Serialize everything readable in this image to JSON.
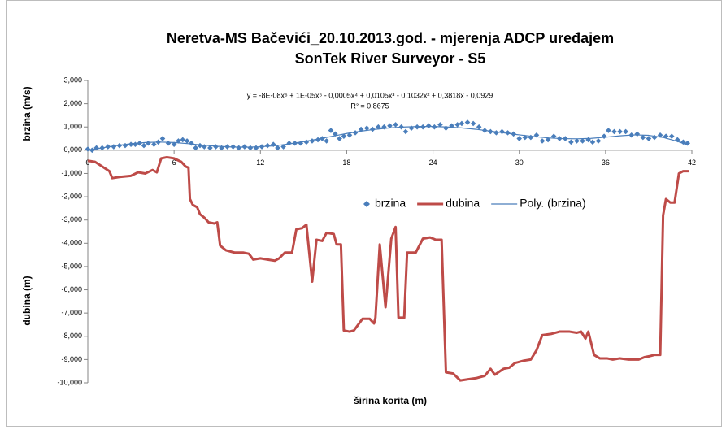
{
  "chart_data": {
    "type": "line",
    "title": [
      "Neretva-MS Bačevići_20.10.2013.god. - mjerenja ADCP uređajem",
      "SonTek River Surveyor - S5"
    ],
    "x_label": "širina korita (m)",
    "y_labels": [
      "brzina (m/s)",
      "dubina (m)"
    ],
    "annotations": [
      "y = -8E-08x⁶ + 1E-05x⁵ - 0,0005x⁴ + 0,0105x³ - 0,1032x² + 0,3818x - 0,0929",
      "R² = 0,8675"
    ],
    "xlim": [
      0,
      42
    ],
    "xticks": [
      0,
      6,
      12,
      18,
      24,
      30,
      36,
      42
    ],
    "ylim": [
      -10,
      3
    ],
    "yticks": [
      {
        "value": 3,
        "label": "3,000"
      },
      {
        "value": 2,
        "label": "2,000"
      },
      {
        "value": 1,
        "label": "1,000"
      },
      {
        "value": 0,
        "label": "0,000"
      },
      {
        "value": -1,
        "label": "-1,000"
      },
      {
        "value": -2,
        "label": "-2,000"
      },
      {
        "value": -3,
        "label": "-3,000"
      },
      {
        "value": -4,
        "label": "-4,000"
      },
      {
        "value": -5,
        "label": "-5,000"
      },
      {
        "value": -6,
        "label": "-6,000"
      },
      {
        "value": -7,
        "label": "-7,000"
      },
      {
        "value": -8,
        "label": "-8,000"
      },
      {
        "value": -9,
        "label": "-9,000"
      },
      {
        "value": -10,
        "label": "-10,000"
      }
    ],
    "grid": false,
    "series": [
      {
        "name": "brzina",
        "type": "scatter",
        "color": "#4a7ebb",
        "x": [
          0,
          0.3,
          0.6,
          1,
          1.4,
          1.8,
          2.2,
          2.6,
          3,
          3.3,
          3.6,
          3.9,
          4.2,
          4.6,
          4.9,
          5.2,
          5.6,
          6,
          6.3,
          6.6,
          6.9,
          7.2,
          7.5,
          7.8,
          8.1,
          8.5,
          8.9,
          9.3,
          9.7,
          10.1,
          10.5,
          10.9,
          11.3,
          11.7,
          12.1,
          12.5,
          12.9,
          13.2,
          13.6,
          14,
          14.4,
          14.8,
          15.2,
          15.6,
          16,
          16.3,
          16.6,
          16.9,
          17.2,
          17.5,
          17.8,
          18.2,
          18.6,
          19,
          19.4,
          19.8,
          20.2,
          20.6,
          21,
          21.4,
          21.8,
          22.1,
          22.5,
          22.9,
          23.3,
          23.7,
          24.1,
          24.5,
          24.9,
          25.3,
          25.7,
          26,
          26.4,
          26.8,
          27.2,
          27.6,
          28,
          28.4,
          28.8,
          29.2,
          29.6,
          30,
          30.4,
          30.8,
          31.2,
          31.6,
          32,
          32.4,
          32.8,
          33.2,
          33.6,
          34,
          34.4,
          34.8,
          35.1,
          35.5,
          35.9,
          36.2,
          36.6,
          37,
          37.4,
          37.8,
          38.2,
          38.6,
          39,
          39.4,
          39.8,
          40.2,
          40.6,
          41,
          41.4,
          41.7
        ],
        "values": [
          0.05,
          0,
          0.1,
          0.1,
          0.15,
          0.15,
          0.2,
          0.2,
          0.25,
          0.25,
          0.3,
          0.2,
          0.3,
          0.25,
          0.35,
          0.5,
          0.3,
          0.25,
          0.4,
          0.45,
          0.4,
          0.3,
          0.1,
          0.2,
          0.15,
          0.1,
          0.15,
          0.1,
          0.15,
          0.15,
          0.1,
          0.15,
          0.1,
          0.1,
          0.15,
          0.2,
          0.25,
          0.1,
          0.15,
          0.3,
          0.3,
          0.3,
          0.35,
          0.4,
          0.45,
          0.5,
          0.4,
          0.85,
          0.7,
          0.5,
          0.6,
          0.65,
          0.75,
          0.9,
          0.95,
          0.9,
          1,
          1,
          1.05,
          1.1,
          1,
          0.8,
          0.95,
          1,
          1,
          1.05,
          1,
          1.1,
          0.95,
          1.05,
          1.1,
          1.15,
          1.2,
          1.15,
          1,
          0.85,
          0.8,
          0.75,
          0.8,
          0.75,
          0.7,
          0.5,
          0.55,
          0.55,
          0.65,
          0.4,
          0.45,
          0.6,
          0.5,
          0.5,
          0.35,
          0.4,
          0.4,
          0.45,
          0.35,
          0.4,
          0.6,
          0.85,
          0.8,
          0.8,
          0.8,
          0.65,
          0.7,
          0.55,
          0.5,
          0.55,
          0.65,
          0.6,
          0.6,
          0.45,
          0.35,
          0.3
        ]
      },
      {
        "name": "dubina",
        "type": "line",
        "color": "#be4b48",
        "x": [
          0,
          0.5,
          1,
          1.5,
          1.7,
          2.2,
          3,
          3.5,
          4,
          4.5,
          4.8,
          5.1,
          5.5,
          6,
          6.5,
          6.8,
          7,
          7.1,
          7.3,
          7.6,
          7.8,
          8.1,
          8.4,
          8.8,
          9,
          9.2,
          9.6,
          10.2,
          10.8,
          11.2,
          11.5,
          12,
          12.5,
          13,
          13.3,
          13.7,
          14.2,
          14.5,
          14.9,
          15.2,
          15.6,
          15.9,
          16.3,
          16.6,
          17.1,
          17.3,
          17.6,
          17.8,
          18.2,
          18.5,
          19.1,
          19.6,
          19.9,
          20,
          20.3,
          20.7,
          21.1,
          21.4,
          21.6,
          22,
          22.2,
          22.8,
          23.3,
          23.8,
          24.2,
          24.6,
          24.9,
          25.4,
          25.9,
          26.4,
          27,
          27.6,
          28,
          28.3,
          28.9,
          29.3,
          29.7,
          30.3,
          30.8,
          31.2,
          31.6,
          32.2,
          32.8,
          33.5,
          34,
          34.3,
          34.6,
          34.8,
          35.2,
          35.6,
          36.1,
          36.5,
          37,
          37.6,
          38.3,
          38.7,
          39.1,
          39.4,
          39.8,
          40,
          40.2,
          40.5,
          40.8,
          41.1,
          41.4,
          41.8
        ],
        "values": [
          -0.45,
          -0.5,
          -0.7,
          -0.9,
          -1.2,
          -1.15,
          -1.1,
          -0.95,
          -1,
          -0.85,
          -0.95,
          -0.35,
          -0.3,
          -0.35,
          -0.5,
          -0.7,
          -0.75,
          -2.1,
          -2.35,
          -2.45,
          -2.75,
          -2.9,
          -3.1,
          -3.15,
          -3.1,
          -4.1,
          -4.3,
          -4.4,
          -4.4,
          -4.45,
          -4.7,
          -4.65,
          -4.7,
          -4.75,
          -4.65,
          -4.4,
          -4.4,
          -3.4,
          -3.35,
          -3.2,
          -5.65,
          -3.85,
          -3.9,
          -3.55,
          -3.6,
          -4.05,
          -4.05,
          -7.75,
          -7.8,
          -7.75,
          -7.25,
          -7.25,
          -7.45,
          -7.2,
          -4.05,
          -6.75,
          -3.8,
          -3.3,
          -7.2,
          -7.2,
          -4.4,
          -4.4,
          -3.8,
          -3.75,
          -3.85,
          -3.85,
          -9.55,
          -9.6,
          -9.9,
          -9.85,
          -9.8,
          -9.7,
          -9.4,
          -9.65,
          -9.4,
          -9.35,
          -9.15,
          -9.05,
          -9,
          -8.6,
          -7.95,
          -7.9,
          -7.8,
          -7.8,
          -7.85,
          -7.8,
          -8.1,
          -7.8,
          -8.8,
          -8.95,
          -8.95,
          -9,
          -8.95,
          -9,
          -9,
          -8.9,
          -8.85,
          -8.8,
          -8.8,
          -2.8,
          -2.1,
          -2.25,
          -2.25,
          -1,
          -0.9,
          -0.9
        ]
      },
      {
        "name": "Poly. (brzina)",
        "type": "line",
        "color": "#4a7ebb",
        "x": [
          0,
          1,
          2,
          3,
          4,
          5,
          6,
          7,
          8,
          9,
          10,
          11,
          12,
          13,
          14,
          15,
          16,
          17,
          18,
          19,
          20,
          21,
          22,
          23,
          24,
          25,
          26,
          27,
          28,
          29,
          30,
          31,
          32,
          33,
          34,
          35,
          36,
          37,
          38,
          39,
          40,
          41,
          41.7
        ],
        "values": [
          0,
          0.1,
          0.2,
          0.28,
          0.33,
          0.35,
          0.33,
          0.28,
          0.22,
          0.17,
          0.14,
          0.13,
          0.15,
          0.19,
          0.27,
          0.37,
          0.48,
          0.6,
          0.72,
          0.82,
          0.9,
          0.96,
          1,
          1.02,
          1.02,
          1,
          0.96,
          0.9,
          0.82,
          0.74,
          0.66,
          0.59,
          0.53,
          0.5,
          0.49,
          0.51,
          0.56,
          0.62,
          0.66,
          0.64,
          0.55,
          0.38,
          0.22
        ]
      }
    ]
  }
}
